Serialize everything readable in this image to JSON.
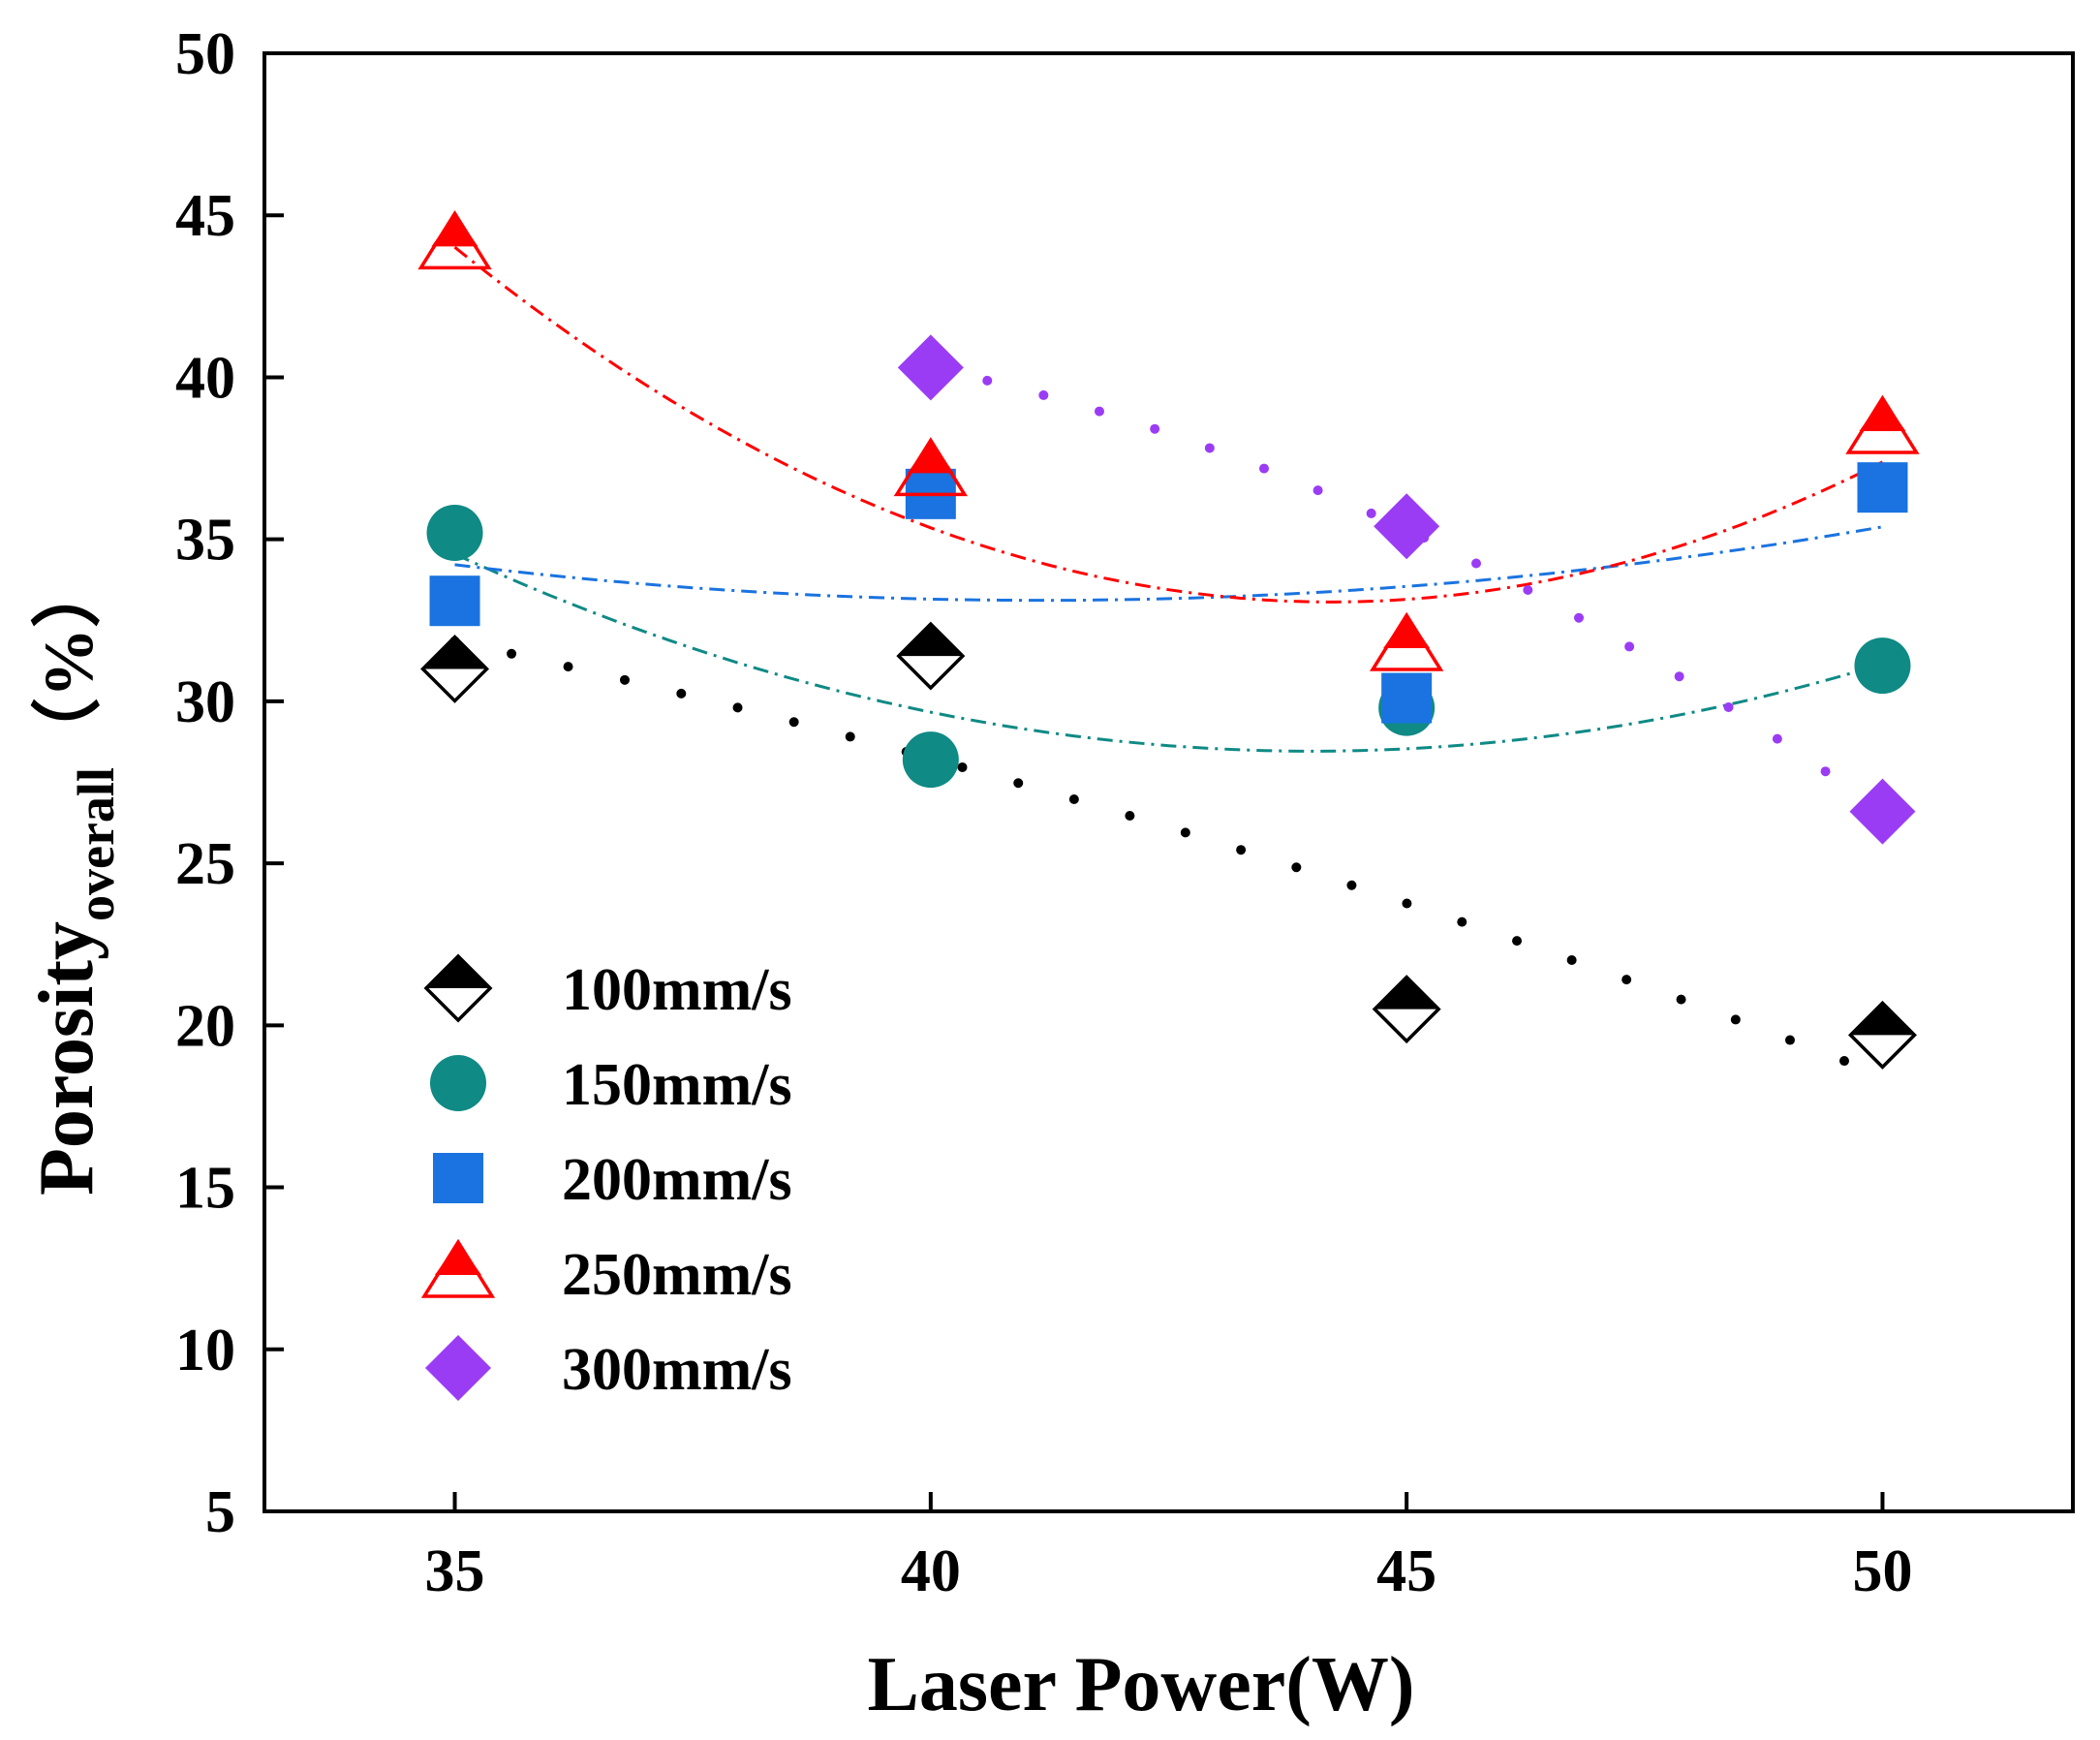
{
  "chart_data": {
    "type": "scatter",
    "xlabel": "Laser Power(W)",
    "ylabel": {
      "main": "Porosity",
      "subscript": "overall",
      "unit": "（%）"
    },
    "xlim": [
      33,
      52
    ],
    "ylim": [
      5,
      50
    ],
    "xticks": [
      35,
      40,
      45,
      50
    ],
    "yticks": [
      5,
      10,
      15,
      20,
      25,
      30,
      35,
      40,
      45,
      50
    ],
    "grid": false,
    "legend_position": "lower-left",
    "series": [
      {
        "name": "100mm/s",
        "marker": "half-diamond",
        "color": "#000000",
        "x": [
          35,
          40,
          45,
          50
        ],
        "y": [
          31.0,
          31.4,
          20.5,
          19.7
        ],
        "fit": {
          "style": "dotted",
          "y": [
            31.8,
            28.4,
            23.6,
            18.5
          ]
        }
      },
      {
        "name": "150mm/s",
        "marker": "circle",
        "color": "#0f8a85",
        "x": [
          35,
          40,
          45,
          50
        ],
        "y": [
          35.2,
          28.2,
          29.8,
          31.1
        ],
        "fit": {
          "style": "dash-dot",
          "y": [
            34.5,
            29.8,
            28.4,
            31.2
          ]
        }
      },
      {
        "name": "200mm/s",
        "marker": "square",
        "color": "#1a73e0",
        "x": [
          35,
          40,
          45,
          50
        ],
        "y": [
          33.1,
          36.4,
          30.1,
          36.6
        ],
        "fit": {
          "style": "dash-dot",
          "y": [
            34.2,
            33.2,
            33.5,
            35.4
          ]
        }
      },
      {
        "name": "250mm/s",
        "marker": "half-triangle",
        "color": "#ff0000",
        "x": [
          35,
          40,
          45,
          50
        ],
        "y": [
          44.1,
          37.1,
          31.7,
          38.4
        ],
        "fit": {
          "style": "dash-dot",
          "y": [
            44.0,
            35.4,
            33.1,
            37.4
          ]
        }
      },
      {
        "name": "300mm/s",
        "marker": "diamond",
        "color": "#9b3cf5",
        "x": [
          40,
          45,
          50
        ],
        "y": [
          40.3,
          35.4,
          26.6
        ],
        "fit": {
          "style": "dotted",
          "y": [
            40.3,
            35.3,
            26.6
          ]
        }
      }
    ]
  }
}
